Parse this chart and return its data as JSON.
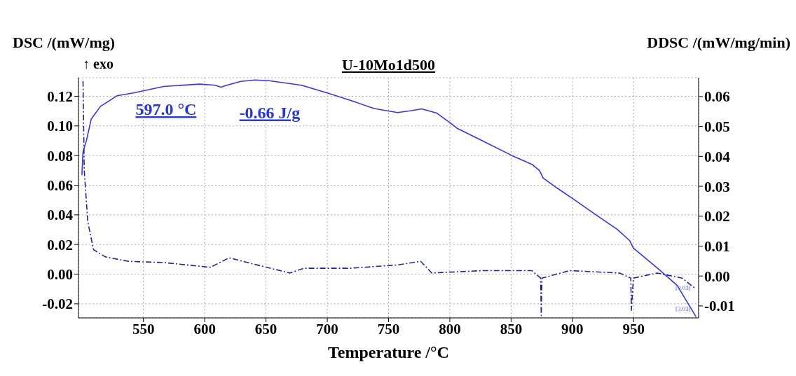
{
  "chart_data": {
    "type": "line",
    "title": "U-10Mo1d500",
    "xlabel": "Temperature /°C",
    "ylabel": "DSC /(mW/mg)",
    "y2label": "DDSC /(mW/mg/min)",
    "xlim": [
      497,
      1003
    ],
    "xticks": [
      550,
      600,
      650,
      700,
      750,
      800,
      850,
      900,
      950
    ],
    "ylim": [
      -0.0295,
      0.1325
    ],
    "yticks": [
      {
        "value": -0.02,
        "label": "-0.02"
      },
      {
        "value": 0,
        "label": "0.00"
      },
      {
        "value": 0.02,
        "label": "0.02"
      },
      {
        "value": 0.04,
        "label": "0.04"
      },
      {
        "value": 0.06,
        "label": "0.06"
      },
      {
        "value": 0.08,
        "label": "0.08"
      },
      {
        "value": 0.1,
        "label": "0.10"
      },
      {
        "value": 0.12,
        "label": "0.12"
      }
    ],
    "y2lim": [
      -0.014,
      0.0663
    ],
    "y2ticks": [
      {
        "value": -0.01,
        "label": "-0.01"
      },
      {
        "value": 0,
        "label": "0.00"
      },
      {
        "value": 0.01,
        "label": "0.01"
      },
      {
        "value": 0.02,
        "label": "0.02"
      },
      {
        "value": 0.03,
        "label": "0.03"
      },
      {
        "value": 0.04,
        "label": "0.04"
      },
      {
        "value": 0.05,
        "label": "0.05"
      },
      {
        "value": 0.06,
        "label": "0.06"
      }
    ],
    "grid": true,
    "series": [
      {
        "color": "#3333ff",
        "axis": "y",
        "line_style": "solid",
        "x": [
          499.8,
          500.7,
          503.6,
          507.4,
          515.0,
          528.4,
          541.8,
          566.5,
          596.1,
          608.5,
          613.3,
          618.0,
          629.5,
          640.9,
          652.4,
          679.0,
          700.1,
          719.1,
          738.2,
          757.3,
          766.8,
          777.1,
          789.4,
          800.6,
          805.7,
          826.2,
          850.7,
          867.0,
          873.2,
          876.2,
          887.5,
          901.1,
          920.1,
          936.5,
          946.7,
          949.8,
          969.2,
          985.5,
          1000.9
        ],
        "values": [
          0.0668,
          0.0826,
          0.0904,
          0.1046,
          0.1132,
          0.1203,
          0.1222,
          0.1266,
          0.1282,
          0.1274,
          0.1261,
          0.1274,
          0.13,
          0.131,
          0.1305,
          0.1274,
          0.1222,
          0.1172,
          0.1117,
          0.109,
          0.1101,
          0.1115,
          0.1086,
          0.1019,
          0.0985,
          0.0901,
          0.08,
          0.0741,
          0.0699,
          0.0648,
          0.0581,
          0.0505,
          0.0395,
          0.0303,
          0.0227,
          0.0176,
          0.0042,
          -0.0076,
          -0.0287
        ]
      },
      {
        "color": "#2020b0",
        "axis": "y2",
        "line_style": "dashed",
        "x": [
          500.7,
          501.7,
          504.6,
          509.3,
          518.9,
          537.9,
          566.5,
          604.7,
          620.0,
          642.8,
          669.5,
          681.0,
          719.1,
          757.3,
          776.3,
          785.3,
          826.1,
          867.0,
          874.1,
          874.6,
          875.2,
          897.7,
          938.6,
          947.7,
          948.1,
          949.8,
          969.2,
          989.6,
          999.8
        ],
        "values": [
          0.0652,
          0.0353,
          0.0181,
          0.0088,
          0.0064,
          0.0049,
          0.0045,
          0.0029,
          0.0061,
          0.0037,
          0.001,
          0.0026,
          0.0026,
          0.0037,
          0.0049,
          0.001,
          0.0018,
          0.0018,
          -0.0007,
          -0.0132,
          -0.0007,
          0.0018,
          0.001,
          -0.0007,
          -0.0115,
          -0.0007,
          0.001,
          -0.0007,
          -0.004
        ]
      }
    ],
    "annotations": [
      "↑ exo",
      {
        "text": "597.0 °C",
        "x": 597,
        "y": 0.1282
      },
      {
        "text": "-0.66 J/g",
        "x": 614,
        "y": 0.1261
      },
      {
        "text": "[3.03]",
        "x": 997.7,
        "y": -0.0086
      },
      {
        "text": "[3.03]",
        "x": 997.7,
        "y": -0.0228
      }
    ]
  }
}
